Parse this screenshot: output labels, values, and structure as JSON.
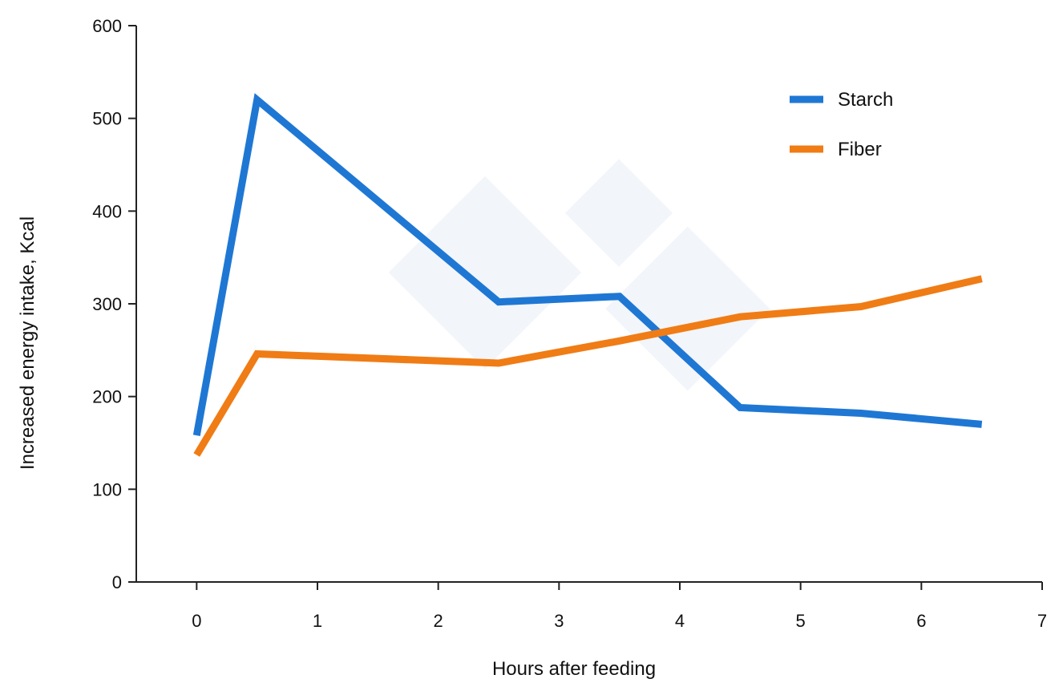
{
  "chart_data": {
    "type": "line",
    "title": "",
    "xlabel": "Hours after feeding",
    "ylabel": "Increased energy intake, Kcal",
    "xlim": [
      -0.5,
      7
    ],
    "ylim": [
      0,
      600
    ],
    "x_ticks": [
      0,
      1,
      2,
      3,
      4,
      5,
      6,
      7
    ],
    "y_ticks": [
      0,
      100,
      200,
      300,
      400,
      500,
      600
    ],
    "grid": false,
    "legend_position": "top-right",
    "series": [
      {
        "name": "Starch",
        "color": "#1f77d4",
        "x": [
          0,
          0.5,
          2.5,
          3.5,
          4.5,
          5.5,
          6.5
        ],
        "values": [
          158,
          520,
          302,
          308,
          188,
          182,
          170
        ]
      },
      {
        "name": "Fiber",
        "color": "#f07c15",
        "x": [
          0,
          0.5,
          2.5,
          3.5,
          4.5,
          5.5,
          6.5
        ],
        "values": [
          137,
          246,
          236,
          260,
          286,
          297,
          327
        ]
      }
    ]
  }
}
